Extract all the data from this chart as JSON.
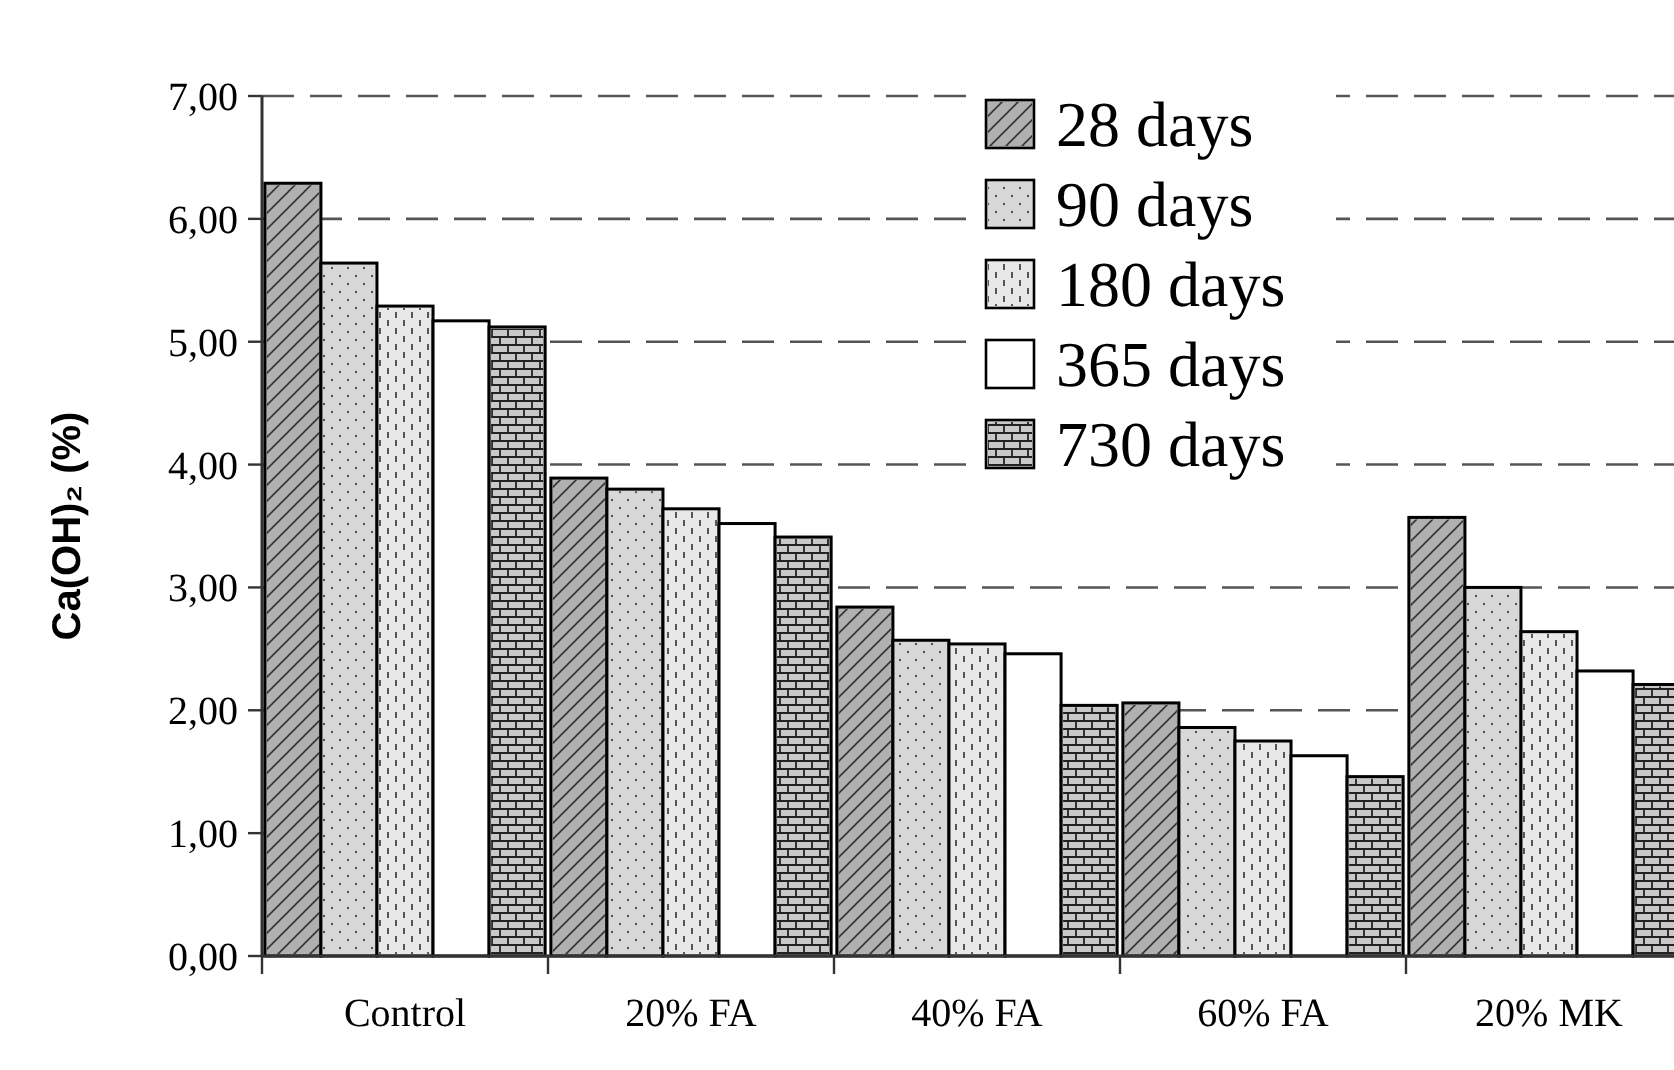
{
  "chart_data": {
    "type": "bar",
    "ylabel": "Ca(OH)₂ (%)",
    "categories": [
      "Control",
      "20% FA",
      "40% FA",
      "60% FA",
      "20% MK"
    ],
    "series": [
      {
        "name": "28 days",
        "color": "#b0b0b0",
        "values": [
          6.29,
          3.89,
          2.84,
          2.06,
          3.57
        ]
      },
      {
        "name": "90 days",
        "color": "#d8d8d8",
        "values": [
          5.64,
          3.8,
          2.57,
          1.86,
          3.0
        ]
      },
      {
        "name": "180 days",
        "color": "#e8e8e8",
        "values": [
          5.29,
          3.64,
          2.54,
          1.75,
          2.64
        ]
      },
      {
        "name": "365 days",
        "color": "#ffffff",
        "values": [
          5.17,
          3.52,
          2.46,
          1.63,
          2.32
        ]
      },
      {
        "name": "730 days",
        "color": "#c8c8c8",
        "values": [
          5.12,
          3.41,
          2.04,
          1.46,
          2.21
        ]
      }
    ],
    "ylim": [
      0,
      7
    ],
    "yticks": [
      {
        "value": 0,
        "label": "0,00"
      },
      {
        "value": 1,
        "label": "1,00"
      },
      {
        "value": 2,
        "label": "2,00"
      },
      {
        "value": 3,
        "label": "3,00"
      },
      {
        "value": 4,
        "label": "4,00"
      },
      {
        "value": 5,
        "label": "5,00"
      },
      {
        "value": 6,
        "label": "6,00"
      },
      {
        "value": 7,
        "label": "7,00"
      }
    ],
    "grid": "y",
    "legend": "top right"
  }
}
